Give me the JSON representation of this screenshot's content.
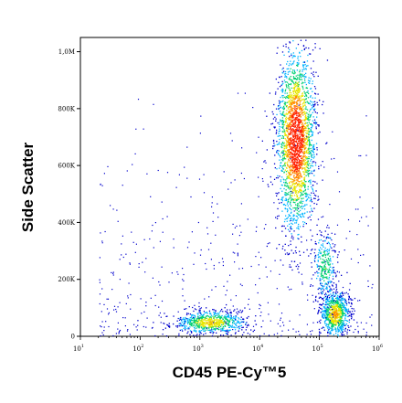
{
  "chart_data": {
    "type": "scatter",
    "subtype": "flow-cytometry-density-dot-plot",
    "xlabel": "CD45 PE-Cy™5",
    "ylabel": "Side Scatter",
    "x_scale": "log",
    "xlim": [
      10,
      1000000
    ],
    "ylim": [
      0,
      1050000
    ],
    "x_ticks": [
      10,
      100,
      1000,
      10000,
      100000,
      1000000
    ],
    "x_tick_labels": [
      {
        "base": "10",
        "exp": "1"
      },
      {
        "base": "10",
        "exp": "2"
      },
      {
        "base": "10",
        "exp": "3"
      },
      {
        "base": "10",
        "exp": "4"
      },
      {
        "base": "10",
        "exp": "5"
      },
      {
        "base": "10",
        "exp": "6"
      }
    ],
    "y_ticks": [
      0,
      200000,
      400000,
      600000,
      800000,
      1000000
    ],
    "y_tick_labels": [
      "0",
      "200K",
      "400K",
      "600K",
      "800K",
      "1,0M"
    ],
    "grid": false,
    "colormap": [
      "#0000cc",
      "#00b4ff",
      "#00d070",
      "#e6e600",
      "#ff8c00",
      "#ff2000"
    ],
    "populations": [
      {
        "x_center": 40000,
        "y_center": 690000,
        "x_spread_decades": 0.16,
        "y_spread": 160000,
        "relative_count": 1.0
      },
      {
        "x_center": 180000,
        "y_center": 80000,
        "x_spread_decades": 0.12,
        "y_spread": 40000,
        "relative_count": 0.35
      },
      {
        "x_center": 120000,
        "y_center": 250000,
        "x_spread_decades": 0.1,
        "y_spread": 60000,
        "relative_count": 0.12
      },
      {
        "x_center": 1500,
        "y_center": 50000,
        "x_spread_decades": 0.3,
        "y_spread": 20000,
        "relative_count": 0.3
      }
    ]
  }
}
